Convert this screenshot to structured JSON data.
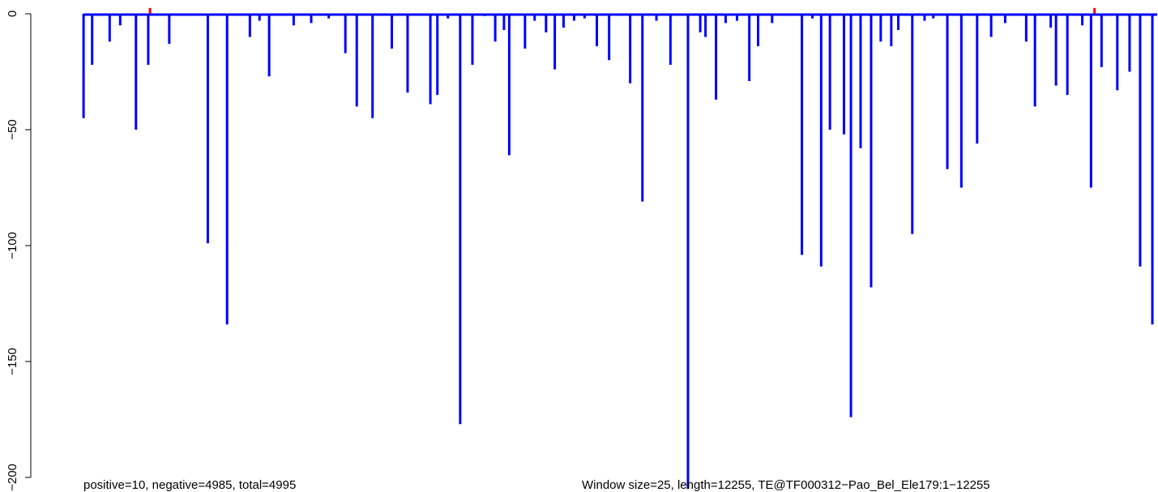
{
  "chart_data": {
    "type": "bar",
    "title": "",
    "xlabel": "",
    "ylabel": "",
    "ylim": [
      -200,
      2
    ],
    "x_range": [
      1,
      12255
    ],
    "y_ticks": [
      0,
      -50,
      -100,
      -150,
      -200
    ],
    "y_tick_labels": [
      "0",
      "−50",
      "−100",
      "−150",
      "−200"
    ],
    "grid": false,
    "legend": "none",
    "colors": {
      "negative": "#0000ff",
      "positive": "#ff0000",
      "axis": "#000000"
    },
    "annotations": {
      "left": "positive=10, negative=4985, total=4995",
      "right": "Window size=25, length=12255, TE@TF000312−Pao_Bel_Ele179:1−12255"
    },
    "series": [
      {
        "sign": "negative",
        "x": [
          2,
          100,
          300,
          420,
          600,
          740,
          980,
          1420,
          1640,
          1900,
          2010,
          2120,
          2400,
          2600,
          2800,
          2990,
          3120,
          3300,
          3520,
          3700,
          3960,
          4040,
          4160,
          4300,
          4440,
          4580,
          4700,
          4800,
          4860,
          5040,
          5150,
          5280,
          5380,
          5480,
          5600,
          5720,
          5860,
          6000,
          6240,
          6380,
          6540,
          6700,
          6900,
          7040,
          7100,
          7220,
          7330,
          7460,
          7600,
          7700,
          7860,
          8200,
          8320,
          8420,
          8520,
          8680,
          8760,
          8870,
          8990,
          9100,
          9220,
          9300,
          9460,
          9600,
          9700,
          9860,
          10020,
          10200,
          10360,
          10520,
          10760,
          10860,
          11040,
          11100,
          11230,
          11400,
          11500,
          11620,
          11800,
          11940,
          12060,
          12200
        ],
        "y": [
          -45,
          -22,
          -12,
          -5,
          -50,
          -22,
          -13,
          -99,
          -134,
          -10,
          -3,
          -27,
          -5,
          -4,
          -2,
          -17,
          -40,
          -45,
          -15,
          -34,
          -39,
          -35,
          -2,
          -177,
          -22,
          -1,
          -12,
          -7,
          -61,
          -15,
          -3,
          -8,
          -24,
          -6,
          -3,
          -2,
          -14,
          -20,
          -30,
          -81,
          -3,
          -22,
          -205,
          -8,
          -10,
          -37,
          -4,
          -3,
          -29,
          -14,
          -4,
          -104,
          -2,
          -109,
          -50,
          -52,
          -174,
          -58,
          -118,
          -12,
          -14,
          -7,
          -95,
          -3,
          -2,
          -67,
          -75,
          -56,
          -10,
          -4,
          -12,
          -40,
          -6,
          -31,
          -35,
          -5,
          -75,
          -23,
          -33,
          -25,
          -109,
          -134
        ]
      },
      {
        "sign": "positive",
        "x": [
          760,
          11540
        ],
        "y": [
          2.5,
          2.5
        ]
      }
    ]
  }
}
